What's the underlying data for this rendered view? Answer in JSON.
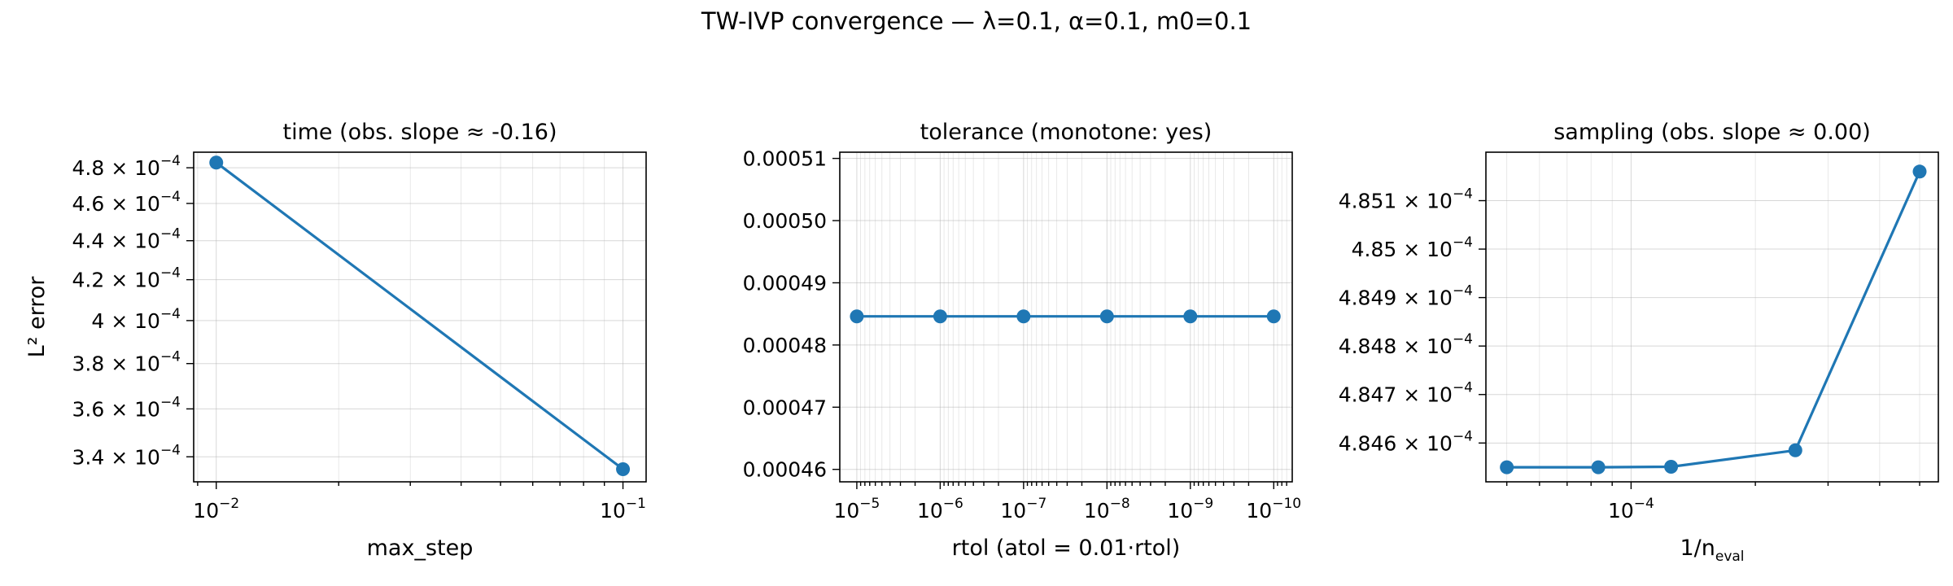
{
  "figure": {
    "suptitle": "TW-IVP convergence — λ=0.1, α=0.1, m0=0.1",
    "colors": {
      "series": "#1f77b4"
    }
  },
  "chart_data": [
    {
      "type": "line",
      "title": "time (obs. slope ≈ -0.16)",
      "xlabel": "max_step",
      "ylabel": "L² error",
      "xscale": "log",
      "yscale": "log",
      "xlim": [
        0.0088,
        0.114
      ],
      "ylim": [
        0.00033,
        0.000489
      ],
      "grid": true,
      "x": [
        0.01,
        0.1
      ],
      "y": [
        0.000483,
        0.000335
      ],
      "xticks": [
        {
          "value": 0.01,
          "base": "10",
          "exp": "−2"
        },
        {
          "value": 0.1,
          "base": "10",
          "exp": "−1"
        }
      ],
      "yticks": [
        {
          "value": 0.00034,
          "mant": "3.4",
          "base": "10",
          "exp": "−4"
        },
        {
          "value": 0.00036,
          "mant": "3.6",
          "base": "10",
          "exp": "−4"
        },
        {
          "value": 0.00038,
          "mant": "3.8",
          "base": "10",
          "exp": "−4"
        },
        {
          "value": 0.0004,
          "mant": "4",
          "base": "10",
          "exp": "−4"
        },
        {
          "value": 0.00042,
          "mant": "4.2",
          "base": "10",
          "exp": "−4"
        },
        {
          "value": 0.00044,
          "mant": "4.4",
          "base": "10",
          "exp": "−4"
        },
        {
          "value": 0.00046,
          "mant": "4.6",
          "base": "10",
          "exp": "−4"
        },
        {
          "value": 0.00048,
          "mant": "4.8",
          "base": "10",
          "exp": "−4"
        }
      ]
    },
    {
      "type": "line",
      "title": "tolerance (monotone: yes)",
      "xlabel": "rtol (atol = 0.01·rtol)",
      "ylabel": "",
      "xscale": "log",
      "xinverted": true,
      "yscale": "linear",
      "xlim": [
        1.6e-05,
        6e-11
      ],
      "ylim": [
        0.000458,
        0.000511
      ],
      "grid": true,
      "x": [
        1e-05,
        1e-06,
        1e-07,
        1e-08,
        1e-09,
        1e-10
      ],
      "y": [
        0.0004846,
        0.0004846,
        0.0004846,
        0.0004846,
        0.0004846,
        0.0004846
      ],
      "xticks": [
        {
          "value": 1e-05,
          "base": "10",
          "exp": "−5"
        },
        {
          "value": 1e-06,
          "base": "10",
          "exp": "−6"
        },
        {
          "value": 1e-07,
          "base": "10",
          "exp": "−7"
        },
        {
          "value": 1e-08,
          "base": "10",
          "exp": "−8"
        },
        {
          "value": 1e-09,
          "base": "10",
          "exp": "−9"
        },
        {
          "value": 1e-10,
          "base": "10",
          "exp": "−10"
        }
      ],
      "yticks": [
        {
          "value": 0.00046,
          "label": "0.00046"
        },
        {
          "value": 0.00047,
          "label": "0.00047"
        },
        {
          "value": 0.00048,
          "label": "0.00048"
        },
        {
          "value": 0.00049,
          "label": "0.00049"
        },
        {
          "value": 0.0005,
          "label": "0.00050"
        },
        {
          "value": 0.00051,
          "label": "0.00051"
        }
      ]
    },
    {
      "type": "line",
      "title": "sampling (obs. slope ≈ 0.00)",
      "xlabel": "1/n",
      "xlabel_sub": "eval",
      "ylabel": "",
      "xscale": "log",
      "yscale": "log",
      "xlim": [
        4.45e-05,
        0.000555
      ],
      "ylim": [
        0.00048452,
        0.0004852
      ],
      "grid": true,
      "x": [
        5e-05,
        8.33e-05,
        0.000125,
        0.00025,
        0.0005
      ],
      "y": [
        0.00048455,
        0.00048455,
        0.000484551,
        0.000484585,
        0.00048516
      ],
      "xticks": [
        {
          "value": 0.0001,
          "base": "10",
          "exp": "−4"
        }
      ],
      "yticks": [
        {
          "value": 0.0004846,
          "mant": "4.846",
          "base": "10",
          "exp": "−4"
        },
        {
          "value": 0.0004847,
          "mant": "4.847",
          "base": "10",
          "exp": "−4"
        },
        {
          "value": 0.0004848,
          "mant": "4.848",
          "base": "10",
          "exp": "−4"
        },
        {
          "value": 0.0004849,
          "mant": "4.849",
          "base": "10",
          "exp": "−4"
        },
        {
          "value": 0.000485,
          "mant": "4.85",
          "base": "10",
          "exp": "−4"
        },
        {
          "value": 0.0004851,
          "mant": "4.851",
          "base": "10",
          "exp": "−4"
        }
      ]
    }
  ]
}
